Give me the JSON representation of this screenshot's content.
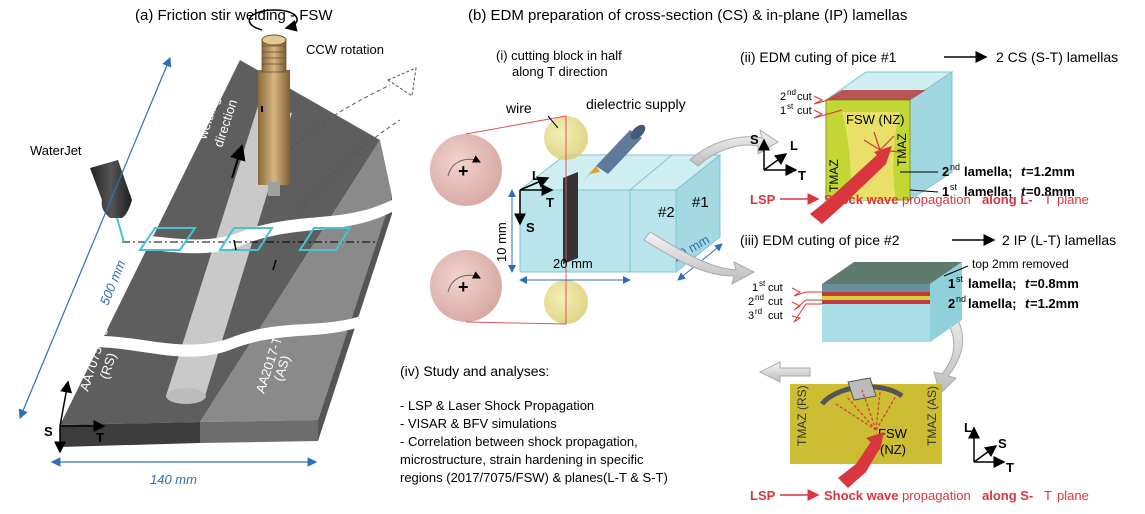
{
  "panel_a": {
    "title": "(a) Friction stir welding - FSW",
    "ccw": "CCW rotation",
    "waterjet": "WaterJet",
    "welding_dir_1": "welding",
    "welding_dir_2": "direction",
    "length": "500 mm",
    "width": "140 mm",
    "rs_1": "AA7075-T6",
    "rs_2": "(RS)",
    "as_1": "AA2017-T4",
    "as_2": "(AS)",
    "axis_l": "L",
    "axis_s": "S",
    "axis_t": "T"
  },
  "panel_b": {
    "title": "(b) EDM preparation of cross-section (CS) & in-plane (IP) lamellas",
    "step_i_1": "(i) cutting block in half",
    "step_i_2": "along T direction",
    "wire": "wire",
    "dielectric": "dielectric supply",
    "plus": "+",
    "dim_10": "10 mm",
    "dim_20a": "20 mm",
    "dim_20b": "20 mm",
    "piece_2": "#2",
    "piece_1": "#1",
    "axis_l": "L",
    "axis_t": "T",
    "axis_s": "S"
  },
  "step_ii": {
    "title_a": "(ii) EDM cuting of pice #1",
    "title_b": "2 CS (S-T) lamellas",
    "cut2": "2",
    "cut2_sup": "nd",
    "cut1": "1",
    "cut1_sup": "st",
    "cut_word": "cut",
    "fsw": "FSW (NZ)",
    "tmaz": "TMAZ",
    "lam2_a": "2",
    "lam2_sup": "nd",
    "lam2_b": "lamella;",
    "lam2_t": "t",
    "lam2_v": "=1.2mm",
    "lam1_a": "1",
    "lam1_sup": "st",
    "lam1_b": "lamella;",
    "lam1_t": "t",
    "lam1_v": "=0.8mm",
    "axis_s": "S",
    "axis_l": "L",
    "axis_t": "T",
    "lsp": "LSP",
    "shock": "Shock wave",
    "prop": "propagation",
    "along": "along L-",
    "plane_t": "T",
    "plane": "plane"
  },
  "step_iii": {
    "title_a": "(iii) EDM cuting of pice #2",
    "title_b": "2 IP (L-T) lamellas",
    "top_removed": "top 2mm removed",
    "cut1": "1",
    "cut1_sup": "st",
    "cut2": "2",
    "cut2_sup": "nd",
    "cut3": "3",
    "cut3_sup": "rd",
    "cut_word": "cut",
    "lam1": "1",
    "lam1_sup": "st",
    "lam1_b": "lamella;",
    "lam1_t": "t",
    "lam1_v": "=0.8mm",
    "lam2": "2",
    "lam2_sup": "nd",
    "lam2_b": "lamella;",
    "lam2_t": "t",
    "lam2_v": "=1.2mm"
  },
  "step_iv": {
    "title": "(iv) Study and analyses:",
    "line1": "- LSP & Laser Shock  Propagation",
    "line2": "- VISAR & BFV simulations",
    "line3": "- Correlation between shock propagation,",
    "line4": "microstructure, strain hardening in specific",
    "line5": "regions (2017/7075/FSW) & planes(L-T & S-T)"
  },
  "bottom_right": {
    "tmaz_l": "TMAZ (RS)",
    "tmaz_r": "TMAZ (AS)",
    "fsw": "FSW",
    "nz": "(NZ)",
    "axis_l": "L",
    "axis_s": "S",
    "axis_t": "T",
    "lsp": "LSP",
    "shock": "Shock wave",
    "prop": "propagation",
    "along": "along S-",
    "plane_t": "T",
    "plane": "plane"
  },
  "colors": {
    "plate_dark": "#5e5e5e",
    "plate_light": "#8c8c8c",
    "dim_blue": "#2f6fb5",
    "cyan": "#45c4d0",
    "red": "#d9363e",
    "yellow": "#cfcf2e",
    "glass": "#a8dde6"
  }
}
